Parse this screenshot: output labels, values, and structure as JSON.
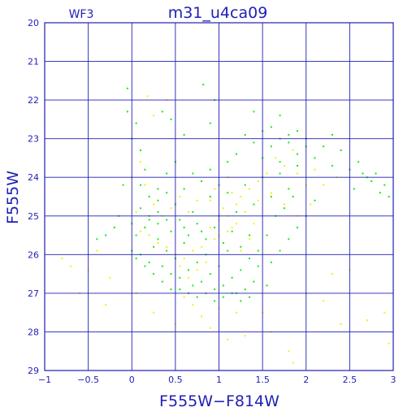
{
  "chart_data": {
    "type": "scatter",
    "title": "m31_u4ca09",
    "subtitle": "WF3",
    "xlabel": "F555W−F814W",
    "ylabel": "F555W",
    "xlim": [
      -1,
      3
    ],
    "ylim": [
      29,
      20
    ],
    "y_inverted": true,
    "grid": true,
    "x_ticks": [
      -1,
      -0.5,
      0,
      0.5,
      1,
      1.5,
      2,
      2.5,
      3
    ],
    "x_tick_labels": [
      "−1",
      "−0.5",
      "0",
      "0.5",
      "1",
      "1.5",
      "2",
      "2.5",
      "3"
    ],
    "y_ticks": [
      20,
      21,
      22,
      23,
      24,
      25,
      26,
      27,
      28,
      29
    ],
    "y_tick_labels": [
      "20",
      "21",
      "22",
      "23",
      "24",
      "25",
      "26",
      "27",
      "28",
      "29"
    ],
    "colors": {
      "axes": "#1f1fb4",
      "grid": "#1f1fb4",
      "series_green": "#18e818",
      "series_yellow": "#f2f200"
    },
    "series": [
      {
        "color": "#18e818",
        "points": [
          [
            0.0,
            25.9
          ],
          [
            0.05,
            25.5
          ],
          [
            0.1,
            26.0
          ],
          [
            0.15,
            25.3
          ],
          [
            0.2,
            26.2
          ],
          [
            0.25,
            25.8
          ],
          [
            0.3,
            25.6
          ],
          [
            0.35,
            26.3
          ],
          [
            0.4,
            25.9
          ],
          [
            0.45,
            26.5
          ],
          [
            0.5,
            26.1
          ],
          [
            0.55,
            26.6
          ],
          [
            0.6,
            25.7
          ],
          [
            0.65,
            26.4
          ],
          [
            0.7,
            26.8
          ],
          [
            0.75,
            26.2
          ],
          [
            0.8,
            26.7
          ],
          [
            0.85,
            26.0
          ],
          [
            0.9,
            26.5
          ],
          [
            0.95,
            26.9
          ],
          [
            1.0,
            26.3
          ],
          [
            1.05,
            26.8
          ],
          [
            1.1,
            25.9
          ],
          [
            1.15,
            26.6
          ],
          [
            1.2,
            27.0
          ],
          [
            1.25,
            26.4
          ],
          [
            1.3,
            26.9
          ],
          [
            1.35,
            26.1
          ],
          [
            1.4,
            26.7
          ],
          [
            1.45,
            26.3
          ],
          [
            0.0,
            25.2
          ],
          [
            0.1,
            24.8
          ],
          [
            0.2,
            25.0
          ],
          [
            0.3,
            24.6
          ],
          [
            0.4,
            25.1
          ],
          [
            0.5,
            24.7
          ],
          [
            0.6,
            25.3
          ],
          [
            0.7,
            24.9
          ],
          [
            0.8,
            25.4
          ],
          [
            0.9,
            24.5
          ],
          [
            1.0,
            25.0
          ],
          [
            1.1,
            24.4
          ],
          [
            1.2,
            24.9
          ],
          [
            1.3,
            24.2
          ],
          [
            1.4,
            24.7
          ],
          [
            1.5,
            24.0
          ],
          [
            1.6,
            24.5
          ],
          [
            1.7,
            23.9
          ],
          [
            1.8,
            24.3
          ],
          [
            1.9,
            23.7
          ],
          [
            1.5,
            23.5
          ],
          [
            1.6,
            23.2
          ],
          [
            1.7,
            23.6
          ],
          [
            1.8,
            23.1
          ],
          [
            1.9,
            23.4
          ],
          [
            2.0,
            23.0
          ],
          [
            2.1,
            23.5
          ],
          [
            2.2,
            23.2
          ],
          [
            2.3,
            23.7
          ],
          [
            2.4,
            23.3
          ],
          [
            2.5,
            23.8
          ],
          [
            2.6,
            23.6
          ],
          [
            2.7,
            24.0
          ],
          [
            2.8,
            23.9
          ],
          [
            2.9,
            24.2
          ],
          [
            2.95,
            24.5
          ],
          [
            2.85,
            24.4
          ],
          [
            2.75,
            24.1
          ],
          [
            2.65,
            23.9
          ],
          [
            2.55,
            24.3
          ],
          [
            1.3,
            22.9
          ],
          [
            1.4,
            23.1
          ],
          [
            1.5,
            22.8
          ],
          [
            1.6,
            22.7
          ],
          [
            1.7,
            23.0
          ],
          [
            1.8,
            22.9
          ],
          [
            1.9,
            22.8
          ],
          [
            2.0,
            23.2
          ],
          [
            1.2,
            23.4
          ],
          [
            1.1,
            23.6
          ],
          [
            0.1,
            23.3
          ],
          [
            0.05,
            22.6
          ],
          [
            -0.05,
            22.3
          ],
          [
            0.0,
            23.0
          ],
          [
            0.15,
            23.8
          ],
          [
            -0.1,
            24.2
          ],
          [
            -0.15,
            25.0
          ],
          [
            -0.2,
            25.3
          ],
          [
            -0.3,
            25.5
          ],
          [
            -0.4,
            25.6
          ],
          [
            0.6,
            24.3
          ],
          [
            0.7,
            23.9
          ],
          [
            0.8,
            24.1
          ],
          [
            0.9,
            23.8
          ],
          [
            1.0,
            24.2
          ],
          [
            0.5,
            23.6
          ],
          [
            0.4,
            23.9
          ],
          [
            0.3,
            24.3
          ],
          [
            0.2,
            24.5
          ],
          [
            0.1,
            24.2
          ],
          [
            0.55,
            26.9
          ],
          [
            0.65,
            27.0
          ],
          [
            0.75,
            27.1
          ],
          [
            0.85,
            27.0
          ],
          [
            0.95,
            27.2
          ],
          [
            1.05,
            27.1
          ],
          [
            1.15,
            27.0
          ],
          [
            1.25,
            27.2
          ],
          [
            1.35,
            27.1
          ],
          [
            1.55,
            26.8
          ],
          [
            1.6,
            26.2
          ],
          [
            1.7,
            25.9
          ],
          [
            1.8,
            25.6
          ],
          [
            1.9,
            25.3
          ],
          [
            2.0,
            25.0
          ],
          [
            2.1,
            24.6
          ],
          [
            1.55,
            25.5
          ],
          [
            1.65,
            25.0
          ],
          [
            1.75,
            24.8
          ],
          [
            1.85,
            24.5
          ],
          [
            0.82,
            21.6
          ],
          [
            0.95,
            22.0
          ],
          [
            0.45,
            22.5
          ],
          [
            -0.05,
            21.7
          ],
          [
            0.35,
            22.3
          ],
          [
            0.6,
            22.9
          ],
          [
            0.9,
            22.6
          ],
          [
            1.4,
            22.3
          ],
          [
            1.7,
            22.4
          ],
          [
            2.3,
            22.9
          ],
          [
            0.3,
            25.2
          ],
          [
            0.45,
            25.4
          ],
          [
            0.55,
            25.1
          ],
          [
            0.65,
            25.5
          ],
          [
            0.75,
            25.2
          ],
          [
            0.85,
            25.6
          ],
          [
            0.95,
            25.3
          ],
          [
            1.05,
            25.7
          ],
          [
            1.15,
            25.4
          ],
          [
            1.25,
            25.8
          ],
          [
            1.35,
            25.5
          ],
          [
            1.45,
            25.9
          ],
          [
            0.25,
            26.5
          ],
          [
            0.35,
            26.7
          ],
          [
            0.45,
            26.9
          ],
          [
            0.15,
            26.3
          ],
          [
            0.05,
            26.1
          ],
          [
            0.2,
            25.1
          ],
          [
            0.3,
            24.9
          ],
          [
            0.4,
            24.4
          ]
        ]
      },
      {
        "color": "#f2f200",
        "points": [
          [
            0.9,
            25.3
          ],
          [
            1.0,
            25.1
          ],
          [
            1.1,
            25.4
          ],
          [
            1.2,
            25.2
          ],
          [
            1.0,
            25.5
          ],
          [
            1.1,
            25.0
          ],
          [
            0.95,
            25.6
          ],
          [
            1.15,
            25.3
          ],
          [
            1.05,
            24.8
          ],
          [
            1.2,
            24.7
          ],
          [
            0.8,
            25.8
          ],
          [
            0.7,
            25.9
          ],
          [
            0.6,
            26.1
          ],
          [
            0.5,
            26.0
          ],
          [
            0.4,
            25.8
          ],
          [
            0.3,
            25.7
          ],
          [
            0.2,
            25.5
          ],
          [
            0.1,
            25.4
          ],
          [
            0.85,
            26.2
          ],
          [
            0.75,
            26.4
          ],
          [
            0.65,
            26.6
          ],
          [
            0.55,
            26.3
          ],
          [
            1.25,
            25.9
          ],
          [
            1.35,
            25.6
          ],
          [
            1.3,
            24.9
          ],
          [
            1.4,
            25.2
          ],
          [
            1.45,
            24.6
          ],
          [
            0.9,
            24.6
          ],
          [
            0.95,
            24.3
          ],
          [
            1.1,
            24.0
          ],
          [
            0.0,
            24.0
          ],
          [
            0.1,
            23.6
          ],
          [
            0.05,
            24.9
          ],
          [
            0.15,
            24.2
          ],
          [
            0.25,
            24.7
          ],
          [
            0.35,
            25.0
          ],
          [
            0.45,
            24.8
          ],
          [
            0.55,
            24.5
          ],
          [
            0.65,
            24.9
          ],
          [
            0.75,
            24.6
          ],
          [
            0.6,
            27.1
          ],
          [
            0.7,
            27.3
          ],
          [
            0.8,
            27.6
          ],
          [
            0.9,
            27.9
          ],
          [
            1.0,
            27.4
          ],
          [
            1.2,
            27.5
          ],
          [
            1.3,
            28.1
          ],
          [
            1.6,
            28.0
          ],
          [
            1.8,
            28.5
          ],
          [
            1.85,
            28.8
          ],
          [
            2.0,
            27.0
          ],
          [
            2.2,
            27.2
          ],
          [
            2.3,
            26.5
          ],
          [
            2.4,
            27.8
          ],
          [
            2.7,
            27.7
          ],
          [
            2.9,
            27.5
          ],
          [
            2.95,
            28.3
          ],
          [
            0.25,
            27.5
          ],
          [
            -0.3,
            27.3
          ],
          [
            -0.5,
            26.4
          ],
          [
            -0.7,
            26.3
          ],
          [
            -0.8,
            26.1
          ],
          [
            -0.6,
            27.0
          ],
          [
            -0.4,
            25.9
          ],
          [
            -0.25,
            26.6
          ],
          [
            0.05,
            27.0
          ],
          [
            0.5,
            27.8
          ],
          [
            1.1,
            28.2
          ],
          [
            1.5,
            27.5
          ],
          [
            2.5,
            26.4
          ],
          [
            0.18,
            21.9
          ],
          [
            0.4,
            22.0
          ],
          [
            0.25,
            22.4
          ],
          [
            1.45,
            24.1
          ],
          [
            1.6,
            24.4
          ],
          [
            1.75,
            24.7
          ],
          [
            1.9,
            25.0
          ],
          [
            2.05,
            24.7
          ],
          [
            2.2,
            24.2
          ],
          [
            2.35,
            24.0
          ],
          [
            1.9,
            23.9
          ],
          [
            2.0,
            24.2
          ],
          [
            2.1,
            23.8
          ],
          [
            1.55,
            23.9
          ],
          [
            1.65,
            23.5
          ],
          [
            1.75,
            23.7
          ],
          [
            1.85,
            23.3
          ],
          [
            1.35,
            24.3
          ],
          [
            1.25,
            24.5
          ],
          [
            1.15,
            24.4
          ]
        ]
      }
    ]
  }
}
